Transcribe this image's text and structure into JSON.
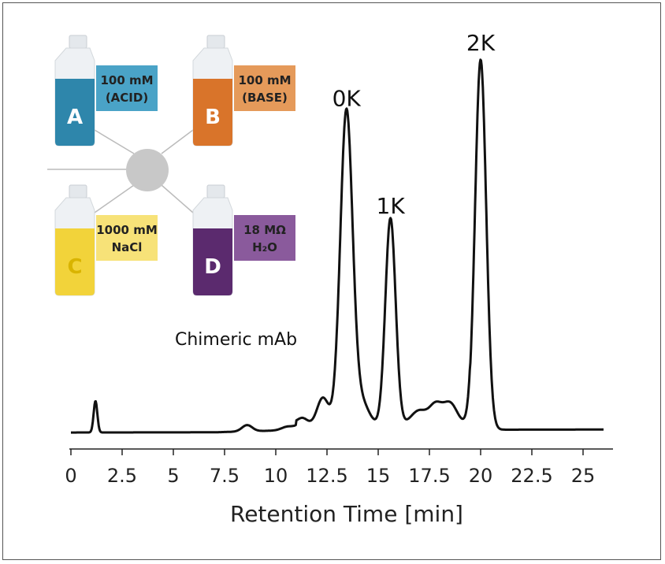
{
  "chart_data": {
    "type": "line",
    "title": "",
    "xlabel": "Retention Time [min]",
    "ylabel": "",
    "xlim": [
      0,
      26
    ],
    "x_ticks": [
      "0",
      "2.5",
      "5",
      "7.5",
      "10",
      "12.5",
      "15",
      "17.5",
      "20",
      "22.5",
      "25"
    ],
    "x_tick_values": [
      0,
      2.5,
      5,
      7.5,
      10,
      12.5,
      15,
      17.5,
      20,
      22.5,
      25
    ],
    "grid": false,
    "series": [
      {
        "peaks": [
          {
            "x": 1.2,
            "height": 8.5,
            "width": 0.09
          },
          {
            "x": 8.6,
            "height": 1.7,
            "width": 0.25
          },
          {
            "x": 10.6,
            "height": 1.0,
            "width": 0.3
          },
          {
            "x": 11.3,
            "height": 2.0,
            "width": 0.25
          },
          {
            "x": 12.3,
            "height": 7.5,
            "width": 0.28
          },
          {
            "x": 13.45,
            "height": 85,
            "width": 0.3
          },
          {
            "x": 14.2,
            "height": 6,
            "width": 0.35
          },
          {
            "x": 15.6,
            "height": 56,
            "width": 0.25
          },
          {
            "x": 17.0,
            "height": 4,
            "width": 0.4
          },
          {
            "x": 17.8,
            "height": 5,
            "width": 0.3
          },
          {
            "x": 18.5,
            "height": 6,
            "width": 0.35
          },
          {
            "x": 20.0,
            "height": 100,
            "width": 0.27
          }
        ],
        "baseline_start": 0.2,
        "baseline_end": 0.4
      }
    ],
    "peak_labels": [
      {
        "text": "0K",
        "x": 13.45
      },
      {
        "text": "1K",
        "x": 15.6
      },
      {
        "text": "2K",
        "x": 20.0
      }
    ],
    "annotation": "Chimeric mAb"
  },
  "inset": {
    "bottles": [
      {
        "letter": "A",
        "line1": "100 mM",
        "line2": "(ACID)",
        "color": "#2e86ab",
        "tag_color": "#4aa3c7"
      },
      {
        "letter": "B",
        "line1": "100 mM",
        "line2": "(BASE)",
        "color": "#d9742a",
        "tag_color": "#e59a5a"
      },
      {
        "letter": "C",
        "line1": "1000 mM",
        "line2": "NaCl",
        "color": "#f2d33a",
        "tag_color": "#f7e278"
      },
      {
        "letter": "D",
        "line1": "18 MΩ",
        "line2": "H₂O",
        "color": "#5b2a6e",
        "tag_color": "#8a5a9c"
      }
    ]
  }
}
